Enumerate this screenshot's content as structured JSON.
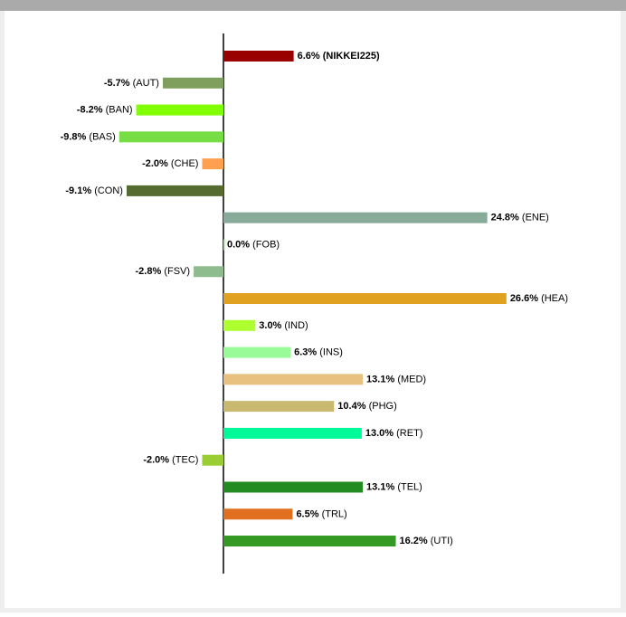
{
  "chart_data": {
    "type": "bar",
    "orientation": "horizontal",
    "categories": [
      "(NIKKEI225)",
      "(AUT)",
      "(BAN)",
      "(BAS)",
      "(CHE)",
      "(CON)",
      "(ENE)",
      "(FOB)",
      "(FSV)",
      "(HEA)",
      "(IND)",
      "(INS)",
      "(MED)",
      "(PHG)",
      "(RET)",
      "(TEC)",
      "(TEL)",
      "(TRL)",
      "(UTI)"
    ],
    "values": [
      6.6,
      -5.7,
      -8.2,
      -9.8,
      -2.0,
      -9.1,
      24.8,
      0.0,
      -2.8,
      26.6,
      3.0,
      6.3,
      13.1,
      10.4,
      13.0,
      -2.0,
      13.1,
      6.5,
      16.2
    ],
    "value_labels": [
      "6.6%",
      "-5.7%",
      "-8.2%",
      "-9.8%",
      "-2.0%",
      "-9.1%",
      "24.8%",
      "0.0%",
      "-2.8%",
      "26.6%",
      "3.0%",
      "6.3%",
      "13.1%",
      "10.4%",
      "13.0%",
      "-2.0%",
      "13.1%",
      "6.5%",
      "16.2%"
    ],
    "colors": [
      "#990000",
      "#7f9f5f",
      "#7fff00",
      "#77dd44",
      "#ffa050",
      "#556b2f",
      "#88aa99",
      "#99dd88",
      "#8fbc8f",
      "#e0a020",
      "#adff2f",
      "#98fb98",
      "#e8c080",
      "#c8b870",
      "#00fa9a",
      "#9acd32",
      "#228b22",
      "#e07020",
      "#339922"
    ]
  }
}
